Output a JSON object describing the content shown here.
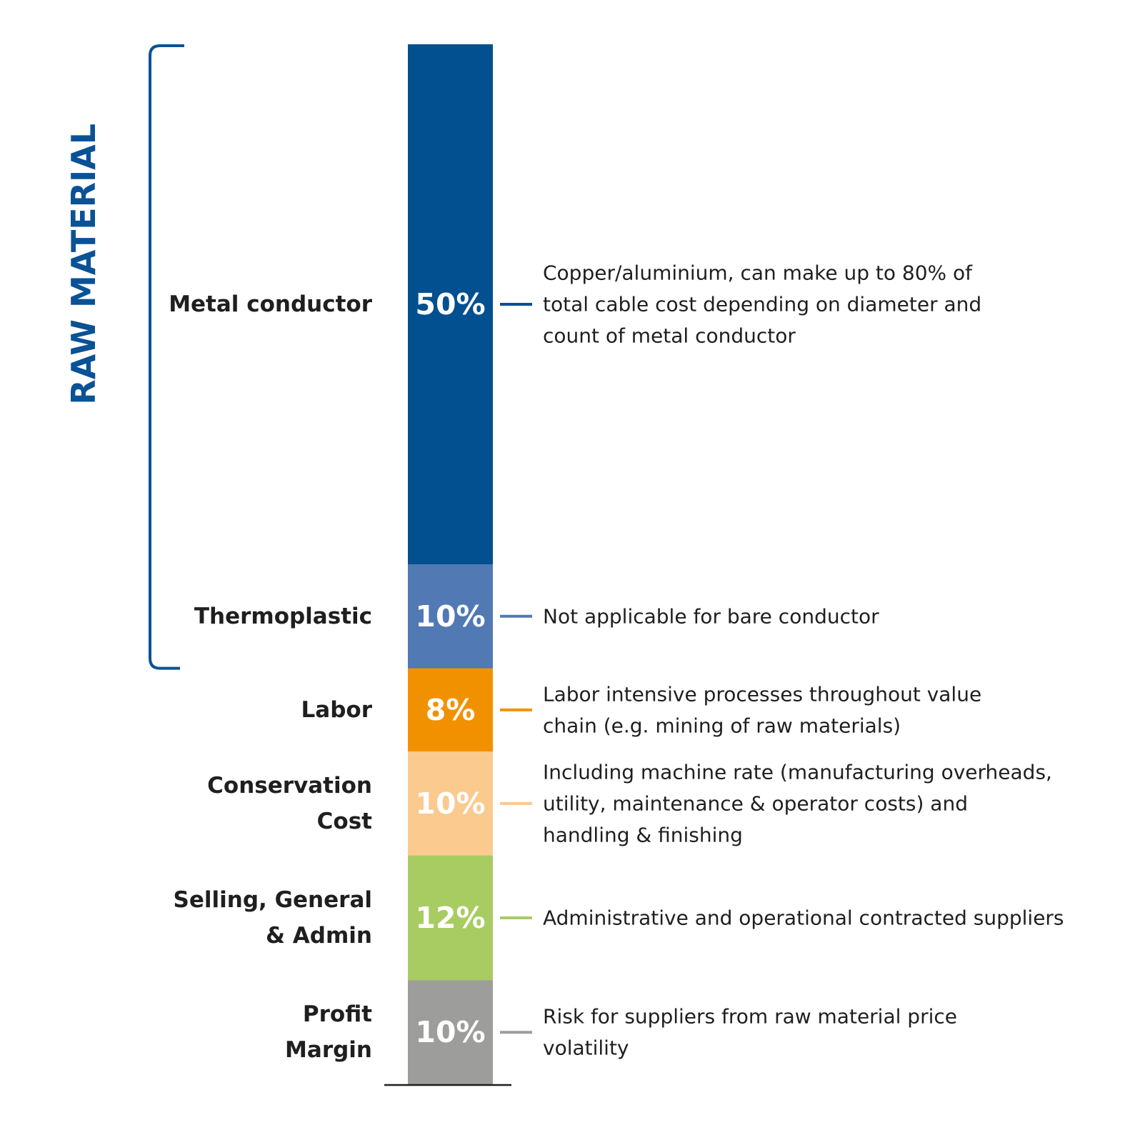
{
  "chart_data": {
    "type": "bar",
    "stacked": true,
    "orientation": "vertical",
    "total_percent": 100,
    "group_bracket": {
      "label": "RAW MATERIAL",
      "covers": [
        "Metal conductor",
        "Thermoplastic"
      ],
      "color": "#0a5296"
    },
    "segments": [
      {
        "label": [
          "Metal conductor"
        ],
        "value": 50,
        "value_label": "50%",
        "color": "#02508f",
        "value_text_color": "#ffffff",
        "description": [
          "Copper/aluminium, can make up to 80% of",
          "total cable cost depending on diameter and",
          "count of metal conductor"
        ]
      },
      {
        "label": [
          "Thermoplastic"
        ],
        "value": 10,
        "value_label": "10%",
        "color": "#5179b3",
        "value_text_color": "#ffffff",
        "description": [
          "Not applicable for bare conductor"
        ]
      },
      {
        "label": [
          "Labor"
        ],
        "value": 8,
        "value_label": "8%",
        "color": "#f29100",
        "value_text_color": "#ffffff",
        "description": [
          "Labor intensive processes throughout value",
          "chain (e.g. mining of raw materials)"
        ]
      },
      {
        "label": [
          "Conservation",
          "Cost"
        ],
        "value": 10,
        "value_label": "10%",
        "color": "#fbca8f",
        "value_text_color": "#ffffff",
        "description": [
          "Including machine rate (manufacturing overheads,",
          "utility, maintenance & operator costs) and",
          "handling & finishing"
        ]
      },
      {
        "label": [
          "Selling, General",
          "& Admin"
        ],
        "value": 12,
        "value_label": "12%",
        "color": "#a8cc62",
        "value_text_color": "#ffffff",
        "description": [
          "Administrative and operational contracted suppliers"
        ]
      },
      {
        "label": [
          "Profit",
          "Margin"
        ],
        "value": 10,
        "value_label": "10%",
        "color": "#9d9d9c",
        "value_text_color": "#ffffff",
        "description": [
          "Risk for suppliers from raw material price",
          "volatility"
        ]
      }
    ],
    "baseline_color": "#1f1f1f"
  }
}
